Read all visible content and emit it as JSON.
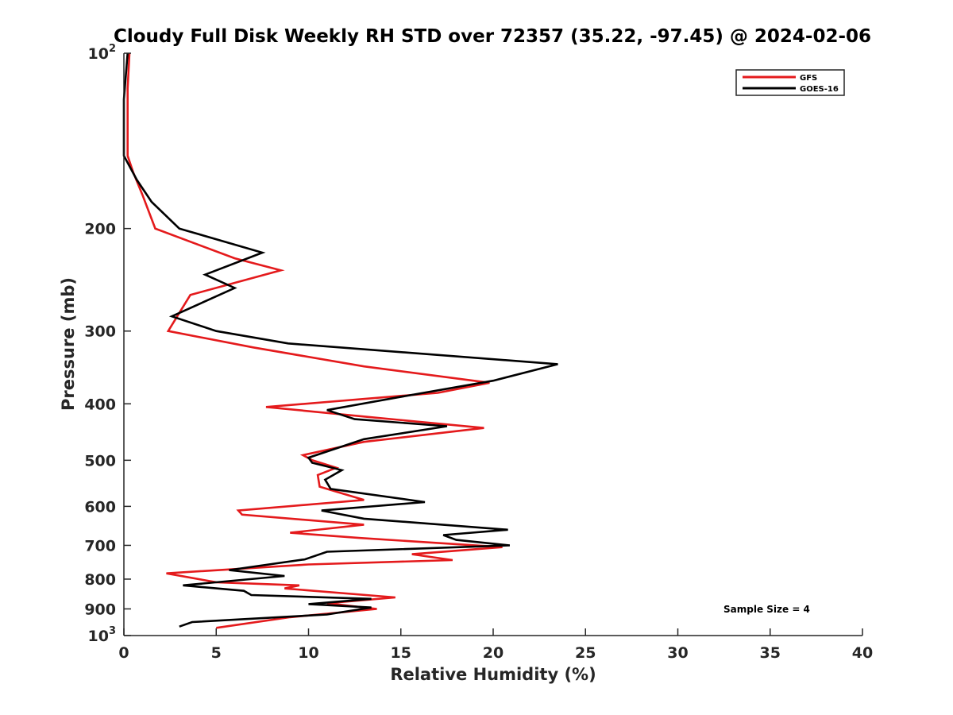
{
  "chart_data": {
    "type": "line",
    "title": "Cloudy Full Disk Weekly RH STD over 72357 (35.22, -97.45) @ 2024-02-06",
    "xlabel": "Relative Humidity (%)",
    "ylabel": "Pressure (mb)",
    "xlim": [
      0,
      40
    ],
    "ylim": [
      100,
      1000
    ],
    "y_scale": "log",
    "y_reversed": true,
    "x_ticks": [
      "0",
      "5",
      "10",
      "15",
      "20",
      "25",
      "30",
      "35",
      "40"
    ],
    "y_ticks": [
      {
        "value": 100,
        "base": "10",
        "exp": "2"
      },
      {
        "value": 200,
        "label": "200"
      },
      {
        "value": 300,
        "label": "300"
      },
      {
        "value": 400,
        "label": "400"
      },
      {
        "value": 500,
        "label": "500"
      },
      {
        "value": 600,
        "label": "600"
      },
      {
        "value": 700,
        "label": "700"
      },
      {
        "value": 800,
        "label": "800"
      },
      {
        "value": 900,
        "label": "900"
      },
      {
        "value": 1000,
        "base": "10",
        "exp": "3"
      }
    ],
    "grid": false,
    "legend_position": "top-right",
    "annotation": "Sample Size = 4",
    "series": [
      {
        "name": "GFS",
        "color": "#e41a1c",
        "points": [
          [
            0.3,
            100
          ],
          [
            0.2,
            115
          ],
          [
            0.2,
            130
          ],
          [
            0.2,
            150
          ],
          [
            0.5,
            160
          ],
          [
            1.0,
            175
          ],
          [
            1.7,
            200
          ],
          [
            6.0,
            225
          ],
          [
            8.5,
            236
          ],
          [
            3.6,
            260
          ],
          [
            2.4,
            300
          ],
          [
            7.0,
            320
          ],
          [
            13.0,
            345
          ],
          [
            19.8,
            368
          ],
          [
            17.0,
            383
          ],
          [
            7.7,
            405
          ],
          [
            13.5,
            422
          ],
          [
            19.5,
            440
          ],
          [
            13.0,
            465
          ],
          [
            9.7,
            490
          ],
          [
            10.2,
            500
          ],
          [
            11.5,
            515
          ],
          [
            10.5,
            530
          ],
          [
            10.6,
            555
          ],
          [
            13.0,
            585
          ],
          [
            6.2,
            610
          ],
          [
            6.4,
            620
          ],
          [
            13.0,
            645
          ],
          [
            9.0,
            666
          ],
          [
            12.8,
            680
          ],
          [
            20.5,
            705
          ],
          [
            15.6,
            725
          ],
          [
            17.8,
            742
          ],
          [
            10.0,
            755
          ],
          [
            2.3,
            782
          ],
          [
            5.0,
            810
          ],
          [
            9.5,
            820
          ],
          [
            8.7,
            830
          ],
          [
            14.7,
            860
          ],
          [
            11.0,
            880
          ],
          [
            13.7,
            900
          ],
          [
            9.0,
            930
          ],
          [
            5.0,
            970
          ]
        ]
      },
      {
        "name": "GOES-16",
        "color": "#000000",
        "points": [
          [
            0.2,
            100
          ],
          [
            0.0,
            120
          ],
          [
            0.0,
            150
          ],
          [
            0.7,
            165
          ],
          [
            1.5,
            180
          ],
          [
            3.0,
            200
          ],
          [
            7.5,
            220
          ],
          [
            4.4,
            240
          ],
          [
            6.0,
            253
          ],
          [
            2.6,
            283
          ],
          [
            5.0,
            300
          ],
          [
            8.9,
            315
          ],
          [
            23.5,
            342
          ],
          [
            20.0,
            365
          ],
          [
            14.8,
            390
          ],
          [
            11.0,
            410
          ],
          [
            12.5,
            425
          ],
          [
            17.5,
            437
          ],
          [
            13.0,
            460
          ],
          [
            10.0,
            495
          ],
          [
            10.2,
            505
          ],
          [
            11.8,
            520
          ],
          [
            10.9,
            540
          ],
          [
            11.2,
            560
          ],
          [
            16.3,
            590
          ],
          [
            10.7,
            610
          ],
          [
            13.0,
            630
          ],
          [
            20.8,
            658
          ],
          [
            17.3,
            672
          ],
          [
            18.0,
            685
          ],
          [
            20.9,
            700
          ],
          [
            11.0,
            718
          ],
          [
            9.8,
            740
          ],
          [
            5.7,
            772
          ],
          [
            8.7,
            790
          ],
          [
            3.2,
            820
          ],
          [
            6.5,
            838
          ],
          [
            6.9,
            852
          ],
          [
            13.4,
            865
          ],
          [
            10.0,
            883
          ],
          [
            13.4,
            895
          ],
          [
            11.0,
            920
          ],
          [
            3.7,
            948
          ],
          [
            3.0,
            965
          ]
        ]
      }
    ]
  }
}
